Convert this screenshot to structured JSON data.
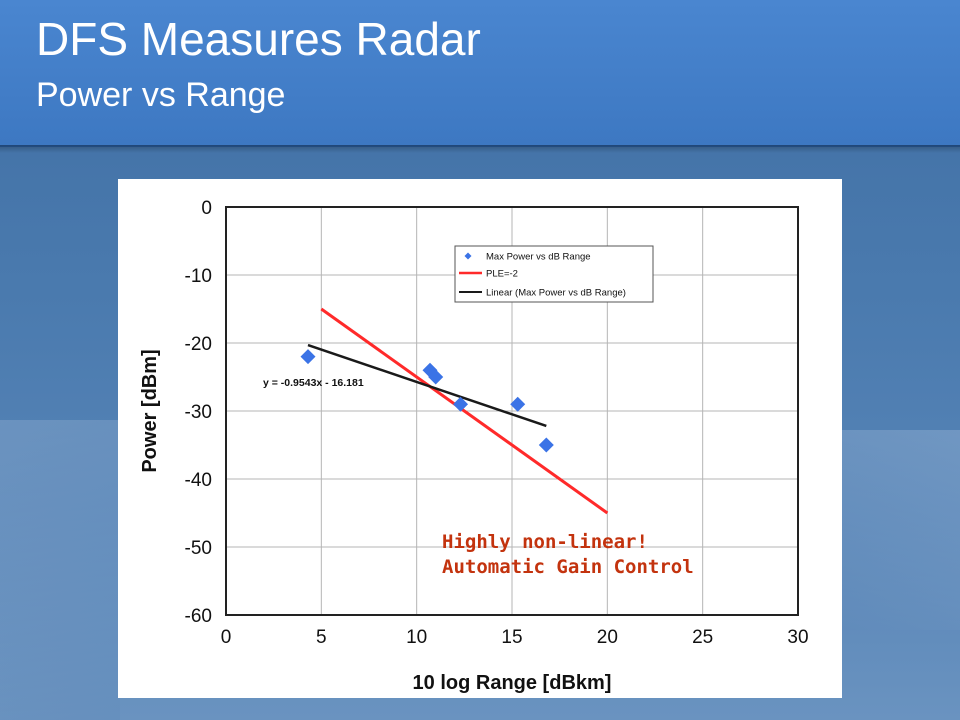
{
  "slide": {
    "title": "DFS Measures Radar",
    "subtitle": "Power vs Range"
  },
  "colors": {
    "header": "#3d78c2",
    "background": "#4a7aae",
    "marker": "#3b73e6",
    "ple_line": "#ff2a2a",
    "linear_line": "#1a1a1a",
    "annotation": "#c3330e"
  },
  "annotation": {
    "line1": "Highly non-linear!",
    "line2": "Automatic Gain Control"
  },
  "chart_data": {
    "type": "scatter",
    "xlabel": "10 log Range [dBkm]",
    "ylabel": "Power [dBm]",
    "xlim": [
      0,
      30
    ],
    "ylim": [
      -60,
      0
    ],
    "xticks": [
      0,
      5,
      10,
      15,
      20,
      25,
      30
    ],
    "yticks": [
      0,
      -10,
      -20,
      -30,
      -40,
      -50,
      -60
    ],
    "grid": true,
    "legend_position": "top-right",
    "equation": "y = -0.9543x - 16.181",
    "series": [
      {
        "name": "Max Power vs dB Range",
        "kind": "points",
        "marker": "diamond",
        "x": [
          4.3,
          10.7,
          11.0,
          12.3,
          15.3,
          16.8
        ],
        "y": [
          -22,
          -24,
          -25,
          -29,
          -29,
          -35
        ]
      },
      {
        "name": "PLE=-2",
        "kind": "line",
        "x": [
          5,
          20
        ],
        "y": [
          -15,
          -45
        ]
      },
      {
        "name": "Linear (Max Power vs dB Range)",
        "kind": "line",
        "x": [
          4.3,
          16.8
        ],
        "y": [
          -20.3,
          -32.2
        ]
      }
    ]
  }
}
